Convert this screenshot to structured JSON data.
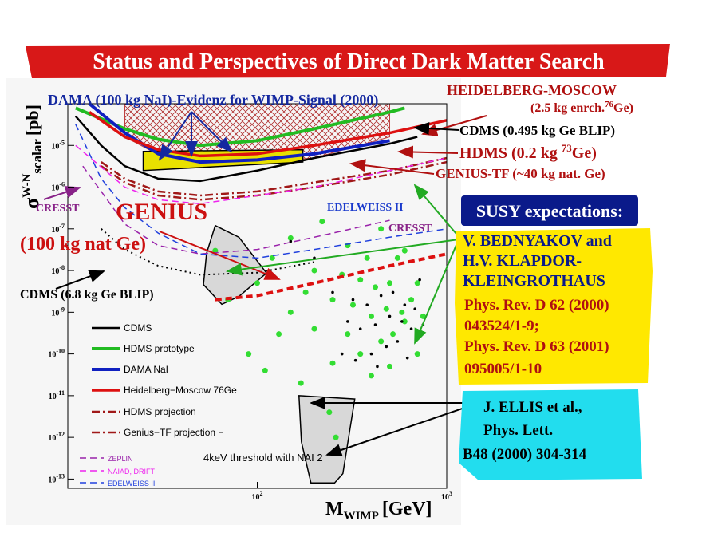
{
  "title": "Status and Perspectives of Direct Dark Matter Search",
  "chart_data": {
    "type": "line",
    "xscale": "log",
    "yscale": "log",
    "xlim": [
      10,
      1000
    ],
    "ylim": [
      6e-14,
      0.0001
    ],
    "xticks": [
      {
        "value": 100,
        "label": "10",
        "sup": "2"
      },
      {
        "value": 1000,
        "label": "10",
        "sup": "3"
      }
    ],
    "yticks": [
      {
        "value": 1e-05,
        "label": "10",
        "sup": "-5"
      },
      {
        "value": 1e-06,
        "label": "10",
        "sup": "-6"
      },
      {
        "value": 1e-07,
        "label": "10",
        "sup": "-7"
      },
      {
        "value": 1e-08,
        "label": "10",
        "sup": "-8"
      },
      {
        "value": 1e-09,
        "label": "10",
        "sup": "-9"
      },
      {
        "value": 1e-10,
        "label": "10",
        "sup": "-10"
      },
      {
        "value": 1e-11,
        "label": "10",
        "sup": "-11"
      },
      {
        "value": 1e-12,
        "label": "10",
        "sup": "-12"
      },
      {
        "value": 1e-13,
        "label": "10",
        "sup": "-13"
      }
    ],
    "xlabel": {
      "main": "M",
      "sub": "WIMP",
      "unit": "[GeV]"
    },
    "ylabel": {
      "main": "σ",
      "sup": "W-N",
      "sub": "scalar",
      "unit": "[pb]"
    },
    "series": [
      {
        "name": "CDMS",
        "color": "#000000",
        "style": "solid",
        "width": 2.5,
        "x": [
          11,
          15,
          20,
          30,
          50,
          100,
          200,
          500,
          700
        ],
        "values": [
          5e-05,
          1e-05,
          3.2e-06,
          1.6e-06,
          1.4e-06,
          2.5e-06,
          5e-06,
          1.1e-05,
          1.6e-05
        ]
      },
      {
        "name": "HDMS prototype",
        "color": "#22bb22",
        "style": "solid",
        "width": 4,
        "x": [
          11,
          20,
          30,
          50,
          100,
          200,
          500,
          600
        ],
        "values": [
          7.9e-05,
          2.5e-05,
          1.4e-05,
          1e-05,
          1.3e-05,
          2.5e-05,
          6.3e-05,
          7.9e-05
        ]
      },
      {
        "name": "DAMA NaI",
        "color": "#1020c0",
        "style": "solid",
        "width": 4,
        "x": [
          13,
          20,
          30,
          50,
          100,
          200,
          500
        ],
        "values": [
          0.0001,
          2e-05,
          6.3e-06,
          4e-06,
          4.5e-06,
          6.3e-06,
          1.3e-05
        ]
      },
      {
        "name": "Heidelberg−Moscow 76Ge",
        "color": "#dd1010",
        "style": "solid",
        "width": 3.5,
        "x": [
          13,
          20,
          30,
          50,
          100,
          200,
          500,
          1000
        ],
        "values": [
          6.3e-05,
          1.6e-05,
          7.9e-06,
          5.6e-06,
          6.3e-06,
          1e-05,
          2e-05,
          4e-05
        ]
      },
      {
        "name": "HDMS projection",
        "color": "#a01818",
        "style": "dashdot",
        "width": 2.5,
        "x": [
          15,
          20,
          30,
          50,
          100,
          200,
          500,
          1000
        ],
        "values": [
          4e-06,
          1.6e-06,
          7.9e-07,
          6.3e-07,
          7.9e-07,
          1.3e-06,
          2.5e-06,
          5e-06
        ]
      },
      {
        "name": "Genius−TF projection −",
        "color": "#a01818",
        "style": "dashdot",
        "width": 2.5,
        "x": [
          15,
          20,
          30,
          50,
          100,
          200,
          500,
          1000
        ],
        "values": [
          3.2e-06,
          1.3e-06,
          6.3e-07,
          5e-07,
          6.3e-07,
          1e-06,
          2e-06,
          4e-06
        ]
      },
      {
        "name": "ZEPLIN",
        "color": "#9922aa",
        "style": "dashed",
        "width": 1.5,
        "x": [
          12,
          20,
          30,
          50,
          100,
          200,
          500
        ],
        "values": [
          3.2e-06,
          1.3e-07,
          4e-08,
          2.5e-08,
          3.2e-08,
          6.3e-08,
          1.6e-07
        ]
      },
      {
        "name": "NAIAD, DRIFT",
        "color": "#ee22ee",
        "style": "dashed",
        "width": 1.5,
        "x": [
          11,
          20,
          30,
          50,
          100,
          200,
          500,
          1000
        ],
        "values": [
          1e-05,
          1e-06,
          5e-07,
          4e-07,
          6.3e-07,
          1e-06,
          2.5e-06,
          5e-06
        ]
      },
      {
        "name": "EDELWEISS II",
        "color": "#2040dd",
        "style": "dashed",
        "width": 1.5,
        "x": [
          11,
          15,
          20,
          30,
          50,
          100,
          200,
          500,
          1000
        ],
        "values": [
          3.2e-05,
          1.6e-06,
          3.2e-07,
          7.9e-08,
          2.5e-08,
          2e-08,
          3.2e-08,
          6.3e-08,
          1e-07
        ]
      }
    ],
    "extra_curves": [
      {
        "color": "#dd1010",
        "style": "dashed",
        "width": 4,
        "x": [
          60,
          100,
          200,
          500,
          1000
        ],
        "values": [
          2e-09,
          2.5e-09,
          5e-09,
          1.3e-08,
          2.5e-08
        ]
      },
      {
        "color": "#000000",
        "style": "dotted",
        "width": 2,
        "x": [
          15,
          20,
          30,
          50,
          100,
          200
        ],
        "values": [
          1e-07,
          3.2e-08,
          1.3e-08,
          7.9e-09,
          8.9e-09,
          1.6e-08
        ]
      }
    ],
    "regions": [
      {
        "color": "#c04040",
        "fill": "hatch",
        "x": [
          20,
          30,
          50,
          100,
          200,
          500,
          500,
          200,
          100,
          50,
          30,
          20
        ],
        "values": [
          0.0001,
          0.0001,
          0.0001,
          0.0001,
          0.0001,
          0.0001,
          1.6e-05,
          5e-06,
          4e-06,
          4.5e-06,
          6e-06,
          1.6e-05
        ]
      },
      {
        "color": "#e8e000",
        "fill": "solid",
        "x": [
          25,
          174,
          174,
          25
        ],
        "values": [
          7.2e-06,
          7.9e-06,
          4e-06,
          2.5e-06
        ]
      },
      {
        "color": "#d8d8d8",
        "fill": "solid",
        "x": [
          60,
          80,
          112,
          80,
          65,
          52,
          54
        ],
        "values": [
          1.2e-07,
          6.3e-08,
          8.7e-09,
          2.4e-09,
          1.55e-09,
          4.6e-09,
          2.6e-08
        ]
      },
      {
        "color": "#d8d8d8",
        "fill": "solid",
        "x": [
          166,
          327,
          283,
          256,
          192,
          171
        ],
        "values": [
          1e-11,
          8.3e-12,
          1.35e-13,
          8.1e-14,
          8.1e-14,
          7.8e-13
        ]
      }
    ],
    "scatter": [
      {
        "color": "#33dd33",
        "x": [
          60,
          80,
          100,
          120,
          150,
          150,
          180,
          200,
          200,
          220,
          250,
          250,
          280,
          300,
          300,
          320,
          350,
          350,
          380,
          400,
          400,
          420,
          450,
          450,
          480,
          500,
          500,
          520,
          550,
          580,
          600,
          600,
          650,
          700,
          700,
          750,
          130,
          90,
          110,
          170,
          70,
          240,
          260
        ],
        "values": [
          3e-08,
          1e-08,
          5e-09,
          2e-08,
          1e-09,
          6e-08,
          3e-09,
          1e-08,
          4e-10,
          1.5e-07,
          2e-09,
          6e-11,
          8e-09,
          3e-10,
          4e-08,
          1.5e-09,
          6e-09,
          1e-10,
          2e-08,
          8e-10,
          3e-11,
          4e-09,
          2e-10,
          1e-07,
          1.2e-09,
          5e-09,
          5e-11,
          3e-10,
          2e-08,
          1e-09,
          6e-10,
          3e-08,
          2e-09,
          1e-10,
          5e-09,
          8e-10,
          3e-10,
          1e-10,
          4e-11,
          2e-11,
          2e-09,
          4e-12,
          1e-12
        ]
      },
      {
        "color": "#000000",
        "x": [
          250,
          280,
          300,
          320,
          350,
          380,
          400,
          420,
          450,
          480,
          500,
          520,
          550,
          580,
          600,
          620,
          650,
          680,
          700,
          720,
          750,
          200,
          150,
          330,
          430
        ],
        "values": [
          3e-09,
          1e-10,
          6e-10,
          2e-09,
          4e-10,
          1.5e-09,
          1e-10,
          5e-10,
          2.5e-09,
          1.5e-10,
          8e-10,
          3e-09,
          2e-10,
          6e-10,
          1.5e-09,
          8e-11,
          4e-10,
          1.2e-09,
          2.5e-10,
          6e-09,
          5e-10,
          2e-08,
          5e-08,
          7e-11,
          5e-11
        ]
      }
    ],
    "annotations": {
      "dama": "DAMA (100 kg NaI)-Evidenz for WIMP-Signal (2000)",
      "hm": "HEIDELBERG-MOSCOW",
      "hm_detail": {
        "pre": "(2.5 kg enrch.",
        "sup": "76",
        "post": "Ge)"
      },
      "cdms_blip": "CDMS (0.495 kg Ge BLIP)",
      "hdms": {
        "pre": "HDMS (0.2 kg ",
        "sup": "73",
        "post": "Ge)"
      },
      "genius_tf": "GENIUS-TF (~40 kg nat. Ge)",
      "cresst_left": "CRESST",
      "genius": "GENIUS",
      "genius_detail": "(100 kg nat Ge)",
      "edelweiss": "EDELWEISS II",
      "cresst_right": "CRESST",
      "cdms_68": "CDMS (6.8 kg Ge BLIP)",
      "threshold": "4keV threshold with NAI 2"
    }
  },
  "susy": {
    "heading": "SUSY expectations:",
    "lines": [
      "V. BEDNYAKOV and",
      "H.V. KLAPDOR-",
      "KLEINGROTHAUS",
      "Phys. Rev. D 62 (2000)",
      "043524/1-9;",
      "Phys. Rev. D 63 (2001)",
      "095005/1-10"
    ]
  },
  "ellis": {
    "lines": [
      "J. ELLIS et al.,",
      "Phys. Lett.",
      "B48 (2000) 304-314"
    ]
  }
}
